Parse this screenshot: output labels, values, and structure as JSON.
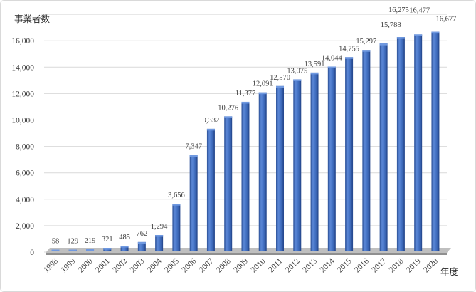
{
  "chart_data": {
    "type": "bar",
    "categories": [
      "1998",
      "1999",
      "2000",
      "2001",
      "2002",
      "2003",
      "2004",
      "2005",
      "2006",
      "2007",
      "2008",
      "2009",
      "2010",
      "2011",
      "2012",
      "2013",
      "2014",
      "2015",
      "2016",
      "2017",
      "2018",
      "2019",
      "2020"
    ],
    "values": [
      58,
      129,
      219,
      321,
      485,
      762,
      1294,
      3656,
      7347,
      9332,
      10276,
      11377,
      12091,
      12570,
      13075,
      13591,
      14044,
      14755,
      15297,
      15788,
      16275,
      16477,
      16677
    ],
    "data_labels": [
      "58",
      "129",
      "219",
      "321",
      "485",
      "762",
      "1,294",
      "3,656",
      "7,347",
      "9,332",
      "10,276",
      "11,377",
      "12,091",
      "12,570",
      "13,075",
      "13,591",
      "14,044",
      "14,755",
      "15,297",
      "15,788",
      "16,275",
      "16,477",
      "16,677"
    ],
    "xlabel": "年度",
    "ylabel": "事業者数",
    "ylim": [
      0,
      18000
    ],
    "y_ticks": [
      0,
      2000,
      4000,
      6000,
      8000,
      10000,
      12000,
      14000,
      16000
    ],
    "y_tick_labels": [
      "0",
      "2,000",
      "4,000",
      "6,000",
      "8,000",
      "10,000",
      "12,000",
      "14,000",
      "16,000"
    ],
    "grid": true,
    "colors": {
      "bar": "#4472c4",
      "bar_light": "#5a86d5",
      "bar_dark": "#23458a",
      "bar_top": "#7099e0",
      "grid": "#d9d9d9",
      "floor_top": "#bfbfbf",
      "floor_front": "#8f8f8f"
    }
  }
}
